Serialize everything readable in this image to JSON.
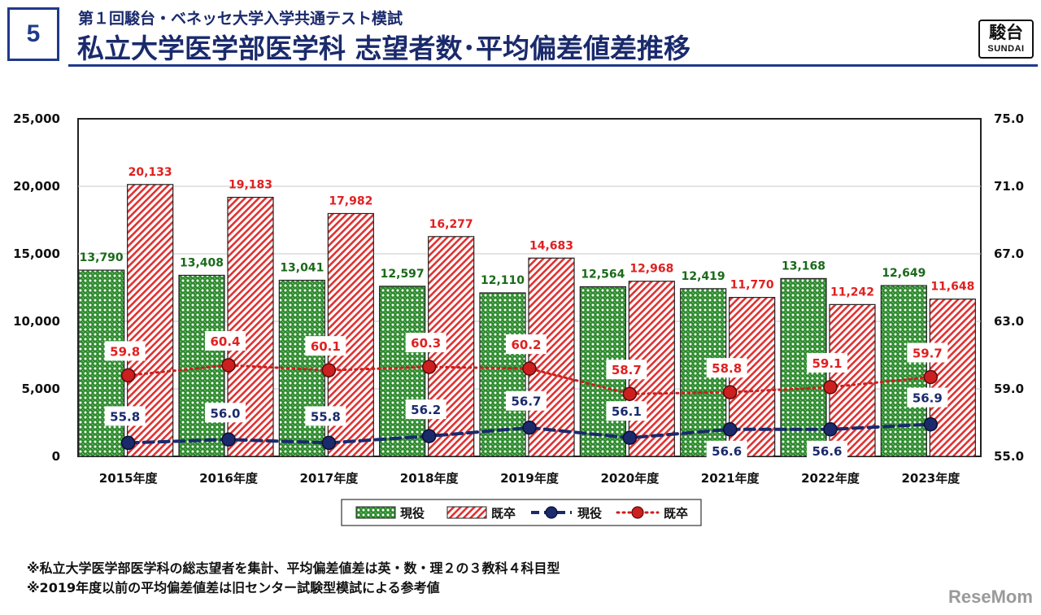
{
  "header": {
    "slide_number": "5",
    "subtitle": "第１回駿台・ベネッセ大学入学共通テスト模試",
    "title": "私立大学医学部医学科 志望者数･平均偏差値差推移",
    "logo_kanji": "駿台",
    "logo_latin": "SUNDAI"
  },
  "notes": [
    "※私立大学医学部医学科の総志望者を集計、平均偏差値差は英・数・理２の３教科４科目型",
    "※2019年度以前の平均偏差値差は旧センター試験型模試による参考値"
  ],
  "watermark": "ReseMom",
  "colors": {
    "navy": "#1f3a8a",
    "genyaku_bar": "#1e7a1e",
    "kisotsu_bar": "#e03030",
    "genyaku_line": "#1a2a6c",
    "kisotsu_line": "#cc1f1f",
    "kisotsu_label": "#e02020",
    "genyaku_label": "#1a6a1a"
  },
  "chart_data": {
    "type": "bar",
    "categories": [
      "2015年度",
      "2016年度",
      "2017年度",
      "2018年度",
      "2019年度",
      "2020年度",
      "2021年度",
      "2022年度",
      "2023年度"
    ],
    "y_left": {
      "ticks": [
        "0",
        "5,000",
        "10,000",
        "15,000",
        "20,000",
        "25,000"
      ],
      "lim": [
        0,
        25000
      ]
    },
    "y_right": {
      "ticks": [
        "55.0",
        "59.0",
        "63.0",
        "67.0",
        "71.0",
        "75.0"
      ],
      "lim": [
        55,
        75
      ]
    },
    "grid": "horizontal",
    "legend_position": "bottom-center",
    "series": [
      {
        "name": "現役",
        "kind": "bar",
        "axis": "left",
        "values": [
          13790,
          13408,
          13041,
          12597,
          12110,
          12564,
          12419,
          13168,
          12649
        ],
        "labels": [
          "13,790",
          "13,408",
          "13,041",
          "12,597",
          "12,110",
          "12,564",
          "12,419",
          "13,168",
          "12,649"
        ]
      },
      {
        "name": "既卒",
        "kind": "bar",
        "axis": "left",
        "values": [
          20133,
          19183,
          17982,
          16277,
          14683,
          12968,
          11770,
          11242,
          11648
        ],
        "labels": [
          "20,133",
          "19,183",
          "17,982",
          "16,277",
          "14,683",
          "12,968",
          "11,770",
          "11,242",
          "11,648"
        ]
      },
      {
        "name": "現役",
        "kind": "line",
        "axis": "right",
        "values": [
          55.8,
          56.0,
          55.8,
          56.2,
          56.7,
          56.1,
          56.6,
          56.6,
          56.9
        ],
        "labels": [
          "55.8",
          "56.0",
          "55.8",
          "56.2",
          "56.7",
          "56.1",
          "56.6",
          "56.6",
          "56.9"
        ]
      },
      {
        "name": "既卒",
        "kind": "line",
        "axis": "right",
        "values": [
          59.8,
          60.4,
          60.1,
          60.3,
          60.2,
          58.7,
          58.8,
          59.1,
          59.7
        ],
        "labels": [
          "59.8",
          "60.4",
          "60.1",
          "60.3",
          "60.2",
          "58.7",
          "58.8",
          "59.1",
          "59.7"
        ]
      }
    ]
  }
}
